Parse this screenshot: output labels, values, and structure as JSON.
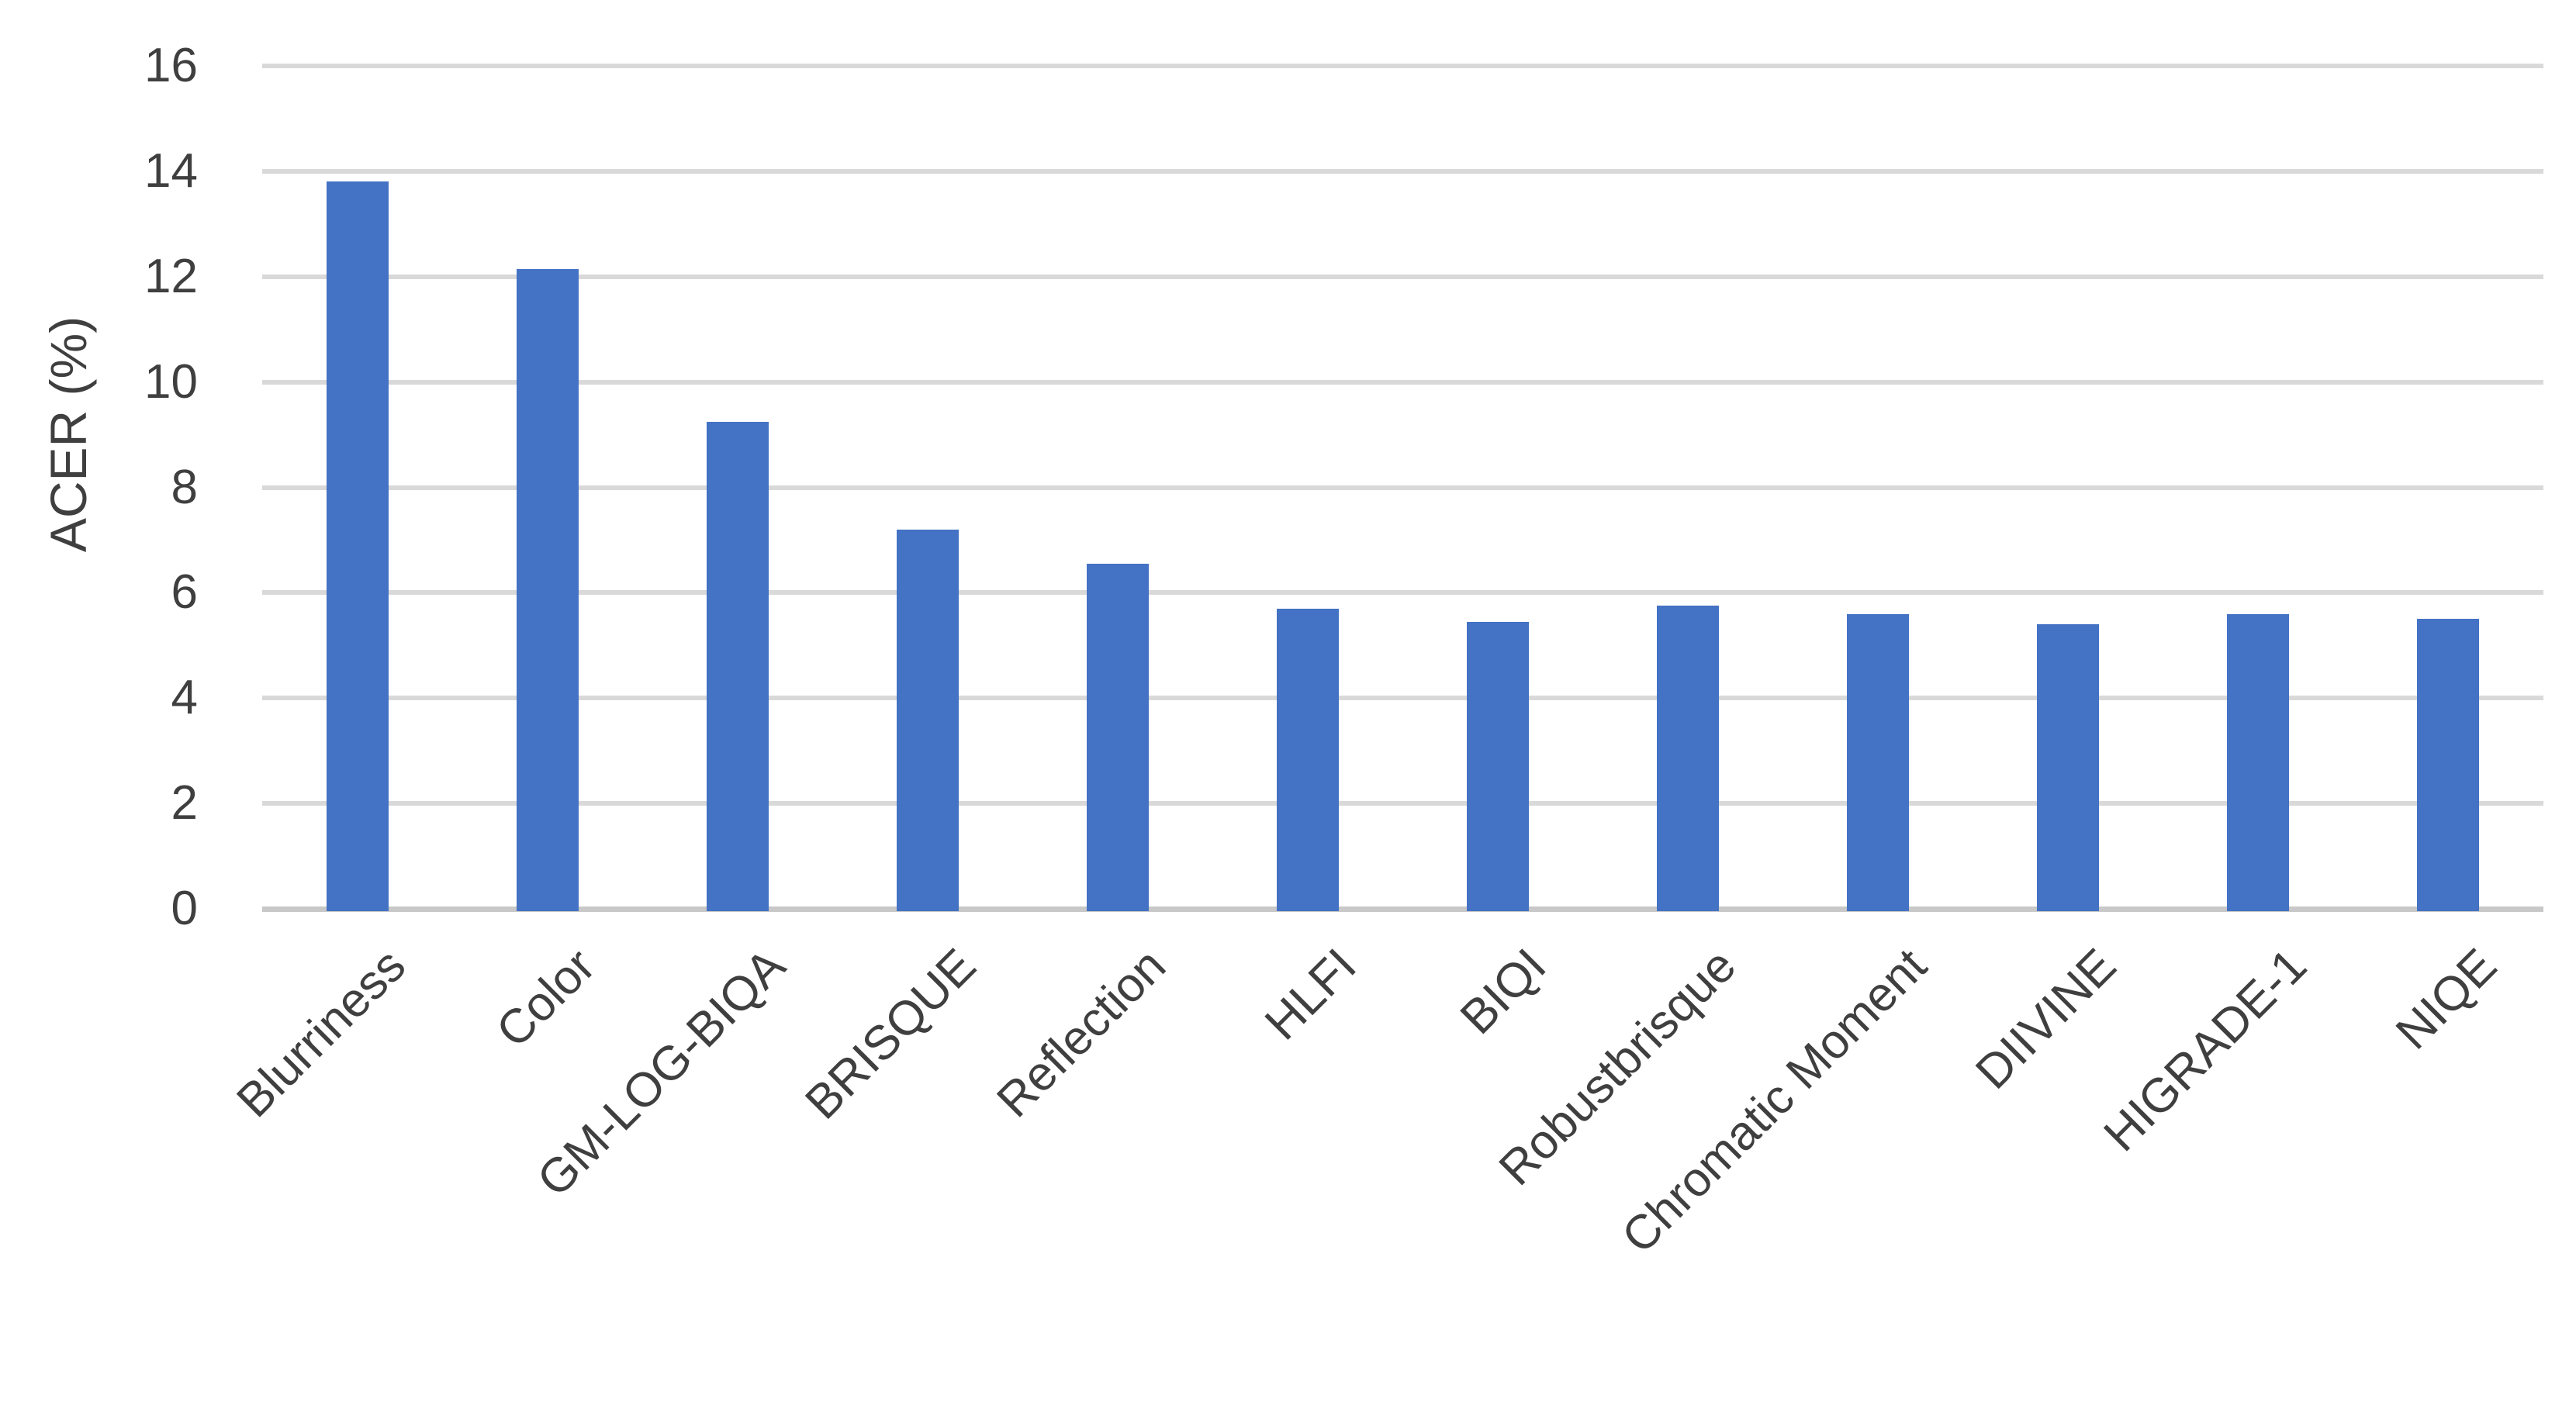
{
  "chart_data": {
    "type": "bar",
    "title": "",
    "xlabel": "",
    "ylabel": "ACER (%)",
    "categories": [
      "Blurriness",
      "Color",
      "GM-LOG-BIQA",
      "BRISQUE",
      "Reflection",
      "HLFI",
      "BIQI",
      "Robustbrisque",
      "Chromatic Moment",
      "DIIVINE",
      "HIGRADE-1",
      "NIQE"
    ],
    "values": [
      13.8,
      12.15,
      9.25,
      7.2,
      6.55,
      5.7,
      5.45,
      5.75,
      5.6,
      5.4,
      5.6,
      5.5
    ],
    "ylim": [
      0,
      16
    ],
    "yticks": [
      0,
      2,
      4,
      6,
      8,
      10,
      12,
      14,
      16
    ],
    "grid": true,
    "legend": "none",
    "bar_color": "#4472c4",
    "gridline_color": "#d9d9d9",
    "axis_line_color": "#c8c8c8",
    "text_color": "#3f3f3f"
  }
}
